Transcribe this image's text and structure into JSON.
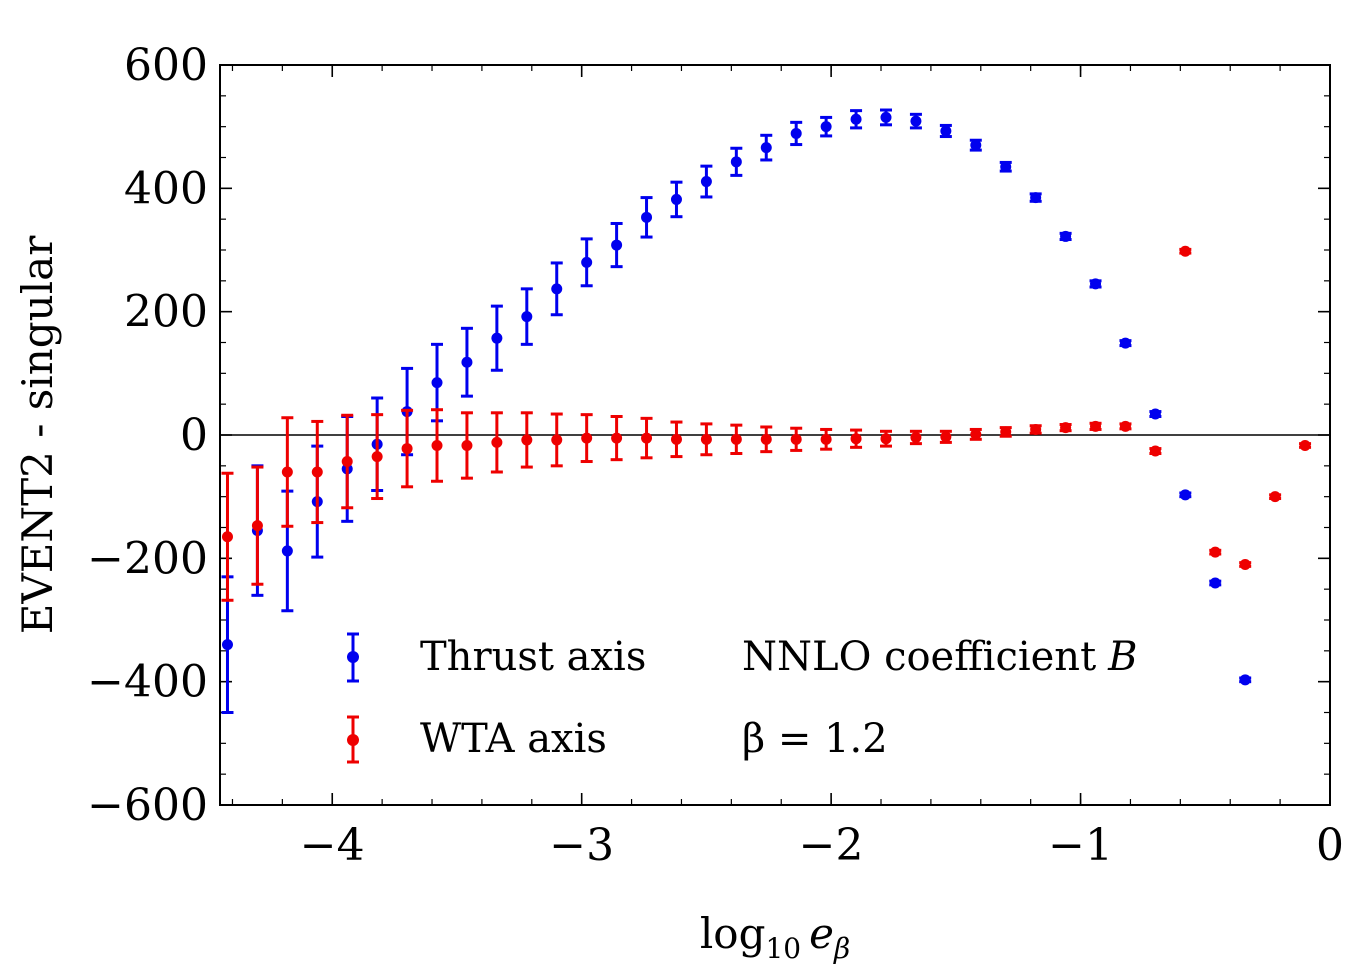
{
  "chart_data": {
    "type": "scatter",
    "title": "",
    "xlabel": "log10 e_β",
    "xlabel_parts": {
      "base": "log",
      "sub1": "10",
      "var": "e",
      "sub2": "β"
    },
    "ylabel": "EVENT2 - singular",
    "xlim": [
      -4.45,
      0
    ],
    "ylim": [
      -600,
      600
    ],
    "x_ticks": [
      -4,
      -3,
      -2,
      -1,
      0
    ],
    "x_tick_labels": [
      "−4",
      "−3",
      "−2",
      "−1",
      "0"
    ],
    "y_ticks": [
      -600,
      -400,
      -200,
      0,
      200,
      400,
      600
    ],
    "y_tick_labels": [
      "−600",
      "−400",
      "−200",
      "0",
      "200",
      "400",
      "600"
    ],
    "zero_line": true,
    "grid": false,
    "legend_position": "bottom-left",
    "annotations": {
      "line1": "NNLO coefficient",
      "line1_var": "B",
      "line2": "β = 1.2"
    },
    "series": [
      {
        "name": "Thrust axis",
        "color": "#0000ee",
        "points": [
          {
            "x": -4.42,
            "y": -340,
            "err": 110
          },
          {
            "x": -4.3,
            "y": -155,
            "err": 105
          },
          {
            "x": -4.18,
            "y": -188,
            "err": 97
          },
          {
            "x": -4.06,
            "y": -108,
            "err": 90
          },
          {
            "x": -3.94,
            "y": -55,
            "err": 85
          },
          {
            "x": -3.82,
            "y": -15,
            "err": 75
          },
          {
            "x": -3.7,
            "y": 38,
            "err": 70
          },
          {
            "x": -3.58,
            "y": 85,
            "err": 62
          },
          {
            "x": -3.46,
            "y": 118,
            "err": 55
          },
          {
            "x": -3.34,
            "y": 157,
            "err": 52
          },
          {
            "x": -3.22,
            "y": 192,
            "err": 45
          },
          {
            "x": -3.1,
            "y": 237,
            "err": 42
          },
          {
            "x": -2.98,
            "y": 280,
            "err": 38
          },
          {
            "x": -2.86,
            "y": 308,
            "err": 35
          },
          {
            "x": -2.74,
            "y": 353,
            "err": 32
          },
          {
            "x": -2.62,
            "y": 382,
            "err": 28
          },
          {
            "x": -2.5,
            "y": 411,
            "err": 25
          },
          {
            "x": -2.38,
            "y": 443,
            "err": 22
          },
          {
            "x": -2.26,
            "y": 466,
            "err": 20
          },
          {
            "x": -2.14,
            "y": 489,
            "err": 18
          },
          {
            "x": -2.02,
            "y": 500,
            "err": 15
          },
          {
            "x": -1.9,
            "y": 512,
            "err": 14
          },
          {
            "x": -1.78,
            "y": 515,
            "err": 12
          },
          {
            "x": -1.66,
            "y": 509,
            "err": 11
          },
          {
            "x": -1.54,
            "y": 493,
            "err": 9
          },
          {
            "x": -1.42,
            "y": 470,
            "err": 8
          },
          {
            "x": -1.3,
            "y": 435,
            "err": 7
          },
          {
            "x": -1.18,
            "y": 385,
            "err": 6
          },
          {
            "x": -1.06,
            "y": 322,
            "err": 5
          },
          {
            "x": -0.94,
            "y": 245,
            "err": 5
          },
          {
            "x": -0.82,
            "y": 149,
            "err": 4
          },
          {
            "x": -0.7,
            "y": 34,
            "err": 4
          },
          {
            "x": -0.58,
            "y": -97,
            "err": 3
          },
          {
            "x": -0.46,
            "y": -240,
            "err": 3
          },
          {
            "x": -0.34,
            "y": -397,
            "err": 3
          }
        ]
      },
      {
        "name": "WTA axis",
        "color": "#ee0000",
        "points": [
          {
            "x": -4.42,
            "y": -165,
            "err": 103
          },
          {
            "x": -4.3,
            "y": -147,
            "err": 95
          },
          {
            "x": -4.18,
            "y": -60,
            "err": 88
          },
          {
            "x": -4.06,
            "y": -60,
            "err": 82
          },
          {
            "x": -3.94,
            "y": -43,
            "err": 75
          },
          {
            "x": -3.82,
            "y": -35,
            "err": 68
          },
          {
            "x": -3.7,
            "y": -22,
            "err": 62
          },
          {
            "x": -3.58,
            "y": -17,
            "err": 58
          },
          {
            "x": -3.46,
            "y": -17,
            "err": 53
          },
          {
            "x": -3.34,
            "y": -12,
            "err": 48
          },
          {
            "x": -3.22,
            "y": -8,
            "err": 44
          },
          {
            "x": -3.1,
            "y": -8,
            "err": 42
          },
          {
            "x": -2.98,
            "y": -5,
            "err": 38
          },
          {
            "x": -2.86,
            "y": -5,
            "err": 35
          },
          {
            "x": -2.74,
            "y": -5,
            "err": 32
          },
          {
            "x": -2.62,
            "y": -7,
            "err": 28
          },
          {
            "x": -2.5,
            "y": -7,
            "err": 25
          },
          {
            "x": -2.38,
            "y": -7,
            "err": 23
          },
          {
            "x": -2.26,
            "y": -7,
            "err": 20
          },
          {
            "x": -2.14,
            "y": -7,
            "err": 18
          },
          {
            "x": -2.02,
            "y": -7,
            "err": 16
          },
          {
            "x": -1.9,
            "y": -6,
            "err": 14
          },
          {
            "x": -1.78,
            "y": -6,
            "err": 12
          },
          {
            "x": -1.66,
            "y": -4,
            "err": 10
          },
          {
            "x": -1.54,
            "y": -3,
            "err": 9
          },
          {
            "x": -1.42,
            "y": 1,
            "err": 8
          },
          {
            "x": -1.3,
            "y": 5,
            "err": 7
          },
          {
            "x": -1.18,
            "y": 9,
            "err": 6
          },
          {
            "x": -1.06,
            "y": 12,
            "err": 5
          },
          {
            "x": -0.94,
            "y": 14,
            "err": 5
          },
          {
            "x": -0.82,
            "y": 14,
            "err": 4
          },
          {
            "x": -0.7,
            "y": -26,
            "err": 4
          },
          {
            "x": -0.58,
            "y": 298,
            "err": 3
          },
          {
            "x": -0.46,
            "y": -190,
            "err": 3
          },
          {
            "x": -0.34,
            "y": -210,
            "err": 3
          },
          {
            "x": -0.22,
            "y": -100,
            "err": 3
          },
          {
            "x": -0.1,
            "y": -17,
            "err": 3
          }
        ]
      }
    ]
  }
}
